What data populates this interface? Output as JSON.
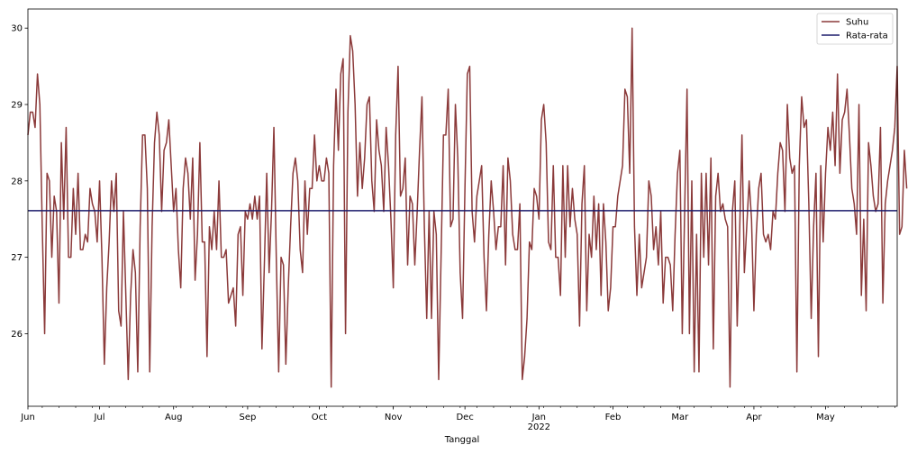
{
  "chart_data": {
    "type": "line",
    "title": "",
    "xlabel": "Tanggal",
    "ylabel": "",
    "x_range": [
      "2021-06-01",
      "2022-05-31"
    ],
    "ylim": [
      25.05,
      30.25
    ],
    "y_ticks": [
      26,
      27,
      28,
      29,
      30
    ],
    "x_ticks": [
      {
        "date": "2021-06-01",
        "label": "Jun"
      },
      {
        "date": "2021-07-01",
        "label": "Jul"
      },
      {
        "date": "2021-08-01",
        "label": "Aug"
      },
      {
        "date": "2021-09-01",
        "label": "Sep"
      },
      {
        "date": "2021-10-01",
        "label": "Oct"
      },
      {
        "date": "2021-11-01",
        "label": "Nov"
      },
      {
        "date": "2021-12-01",
        "label": "Dec"
      },
      {
        "date": "2022-01-01",
        "label": "Jan"
      },
      {
        "date": "2022-02-01",
        "label": "Feb"
      },
      {
        "date": "2022-03-01",
        "label": "Mar"
      },
      {
        "date": "2022-04-01",
        "label": "Apr"
      },
      {
        "date": "2022-05-01",
        "label": "May"
      }
    ],
    "year_label": "2022",
    "year_label_date": "2022-01-01",
    "grid": false,
    "legend_position": "top-right",
    "start_date": "2021-06-01",
    "series": [
      {
        "name": "Suhu",
        "color": "#8b3a3a",
        "values": [
          28.6,
          28.9,
          28.9,
          28.7,
          29.4,
          29.0,
          27.4,
          26.0,
          28.1,
          28.0,
          27.0,
          27.8,
          27.6,
          26.4,
          28.5,
          27.5,
          28.7,
          27.0,
          27.0,
          27.9,
          27.3,
          28.1,
          27.1,
          27.1,
          27.3,
          27.2,
          27.9,
          27.7,
          27.6,
          27.2,
          28.0,
          27.0,
          25.6,
          26.6,
          27.2,
          28.0,
          27.6,
          28.1,
          26.3,
          26.1,
          27.6,
          26.5,
          25.4,
          26.5,
          27.1,
          26.8,
          25.5,
          27.4,
          28.6,
          28.6,
          27.9,
          25.5,
          27.4,
          28.5,
          28.9,
          28.6,
          27.6,
          28.4,
          28.5,
          28.8,
          28.2,
          27.6,
          27.9,
          27.1,
          26.6,
          27.9,
          28.3,
          28.1,
          27.5,
          28.3,
          26.7,
          27.3,
          28.5,
          27.2,
          27.2,
          25.7,
          27.4,
          27.1,
          27.6,
          27.1,
          28.0,
          27.0,
          27.0,
          27.1,
          26.4,
          26.5,
          26.6,
          26.1,
          27.3,
          27.4,
          26.5,
          27.6,
          27.5,
          27.7,
          27.5,
          27.8,
          27.5,
          27.8,
          25.8,
          26.9,
          28.1,
          26.8,
          27.6,
          28.7,
          27.0,
          25.5,
          27.0,
          26.9,
          25.6,
          26.6,
          27.4,
          28.1,
          28.3,
          28.0,
          27.1,
          26.8,
          28.0,
          27.3,
          27.9,
          27.9,
          28.6,
          28.0,
          28.2,
          28.0,
          28.0,
          28.3,
          28.1,
          25.3,
          28.2,
          29.2,
          28.4,
          29.4,
          29.6,
          26.0,
          28.9,
          29.9,
          29.7,
          29.0,
          27.8,
          28.5,
          27.9,
          28.3,
          29.0,
          29.1,
          28.0,
          27.6,
          28.8,
          28.4,
          28.2,
          27.6,
          28.7,
          28.2,
          27.5,
          26.6,
          28.6,
          29.5,
          27.8,
          27.9,
          28.3,
          26.9,
          27.8,
          27.7,
          26.9,
          27.6,
          28.4,
          29.1,
          27.4,
          26.2,
          27.6,
          26.2,
          27.6,
          27.3,
          25.4,
          27.0,
          28.6,
          28.6,
          29.2,
          27.4,
          27.5,
          29.0,
          28.3,
          26.8,
          26.2,
          27.9,
          29.4,
          29.5,
          27.6,
          27.2,
          27.8,
          28.0,
          28.2,
          27.0,
          26.3,
          27.3,
          28.0,
          27.6,
          27.1,
          27.4,
          27.4,
          28.2,
          26.9,
          28.3,
          28.0,
          27.3,
          27.1,
          27.1,
          27.7,
          25.4,
          25.7,
          26.2,
          27.2,
          27.1,
          27.9,
          27.8,
          27.5,
          28.8,
          29.0,
          28.5,
          27.2,
          27.1,
          28.2,
          27.0,
          27.0,
          26.5,
          28.2,
          27.0,
          28.2,
          27.4,
          27.9,
          27.5,
          27.3,
          26.1,
          27.7,
          28.2,
          26.3,
          27.3,
          27.0,
          27.8,
          27.1,
          27.7,
          26.5,
          27.7,
          27.2,
          26.3,
          26.6,
          27.4,
          27.4,
          27.8,
          28.0,
          28.2,
          29.2,
          29.1,
          28.1,
          30.0,
          27.4,
          26.5,
          27.3,
          26.6,
          26.8,
          27.0,
          28.0,
          27.8,
          27.1,
          27.4,
          26.9,
          27.6,
          26.4,
          27.0,
          27.0,
          26.9,
          26.3,
          27.3,
          28.1,
          28.4,
          26.0,
          27.6,
          29.2,
          26.0,
          28.0,
          25.5,
          27.3,
          25.5,
          28.1,
          27.0,
          28.1,
          26.9,
          28.3,
          25.8,
          27.8,
          28.1,
          27.6,
          27.7,
          27.5,
          27.4,
          25.3,
          27.6,
          28.0,
          26.1,
          27.3,
          28.6,
          26.8,
          27.4,
          28.0,
          27.5,
          26.3,
          27.3,
          27.9,
          28.1,
          27.3,
          27.2,
          27.3,
          27.1,
          27.6,
          27.5,
          28.1,
          28.5,
          28.4,
          27.6,
          29.0,
          28.3,
          28.1,
          28.2,
          25.5,
          28.2,
          29.1,
          28.7,
          28.8,
          27.7,
          26.2,
          27.4,
          28.1,
          25.7,
          28.2,
          27.2,
          28.1,
          28.7,
          28.4,
          28.9,
          28.2,
          29.4,
          28.1,
          28.8,
          28.9,
          29.2,
          28.6,
          27.9,
          27.7,
          27.3,
          29.0,
          26.5,
          27.5,
          26.3,
          28.5,
          28.2,
          27.8,
          27.6,
          27.7,
          28.7,
          26.4,
          27.7,
          28.0,
          28.2,
          28.4,
          28.7,
          29.5,
          27.3,
          27.4,
          28.4,
          27.9
        ]
      },
      {
        "name": "Rata-rata",
        "color": "#1c1c6b",
        "constant": 27.61
      }
    ]
  }
}
